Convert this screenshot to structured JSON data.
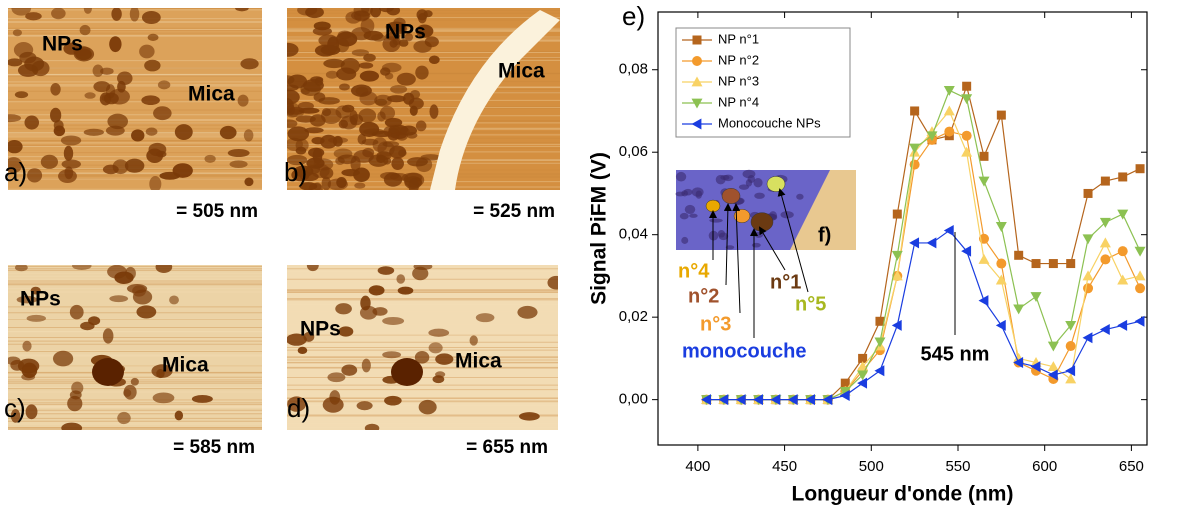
{
  "panels": [
    {
      "label": "a)",
      "caption": "= 505 nm",
      "texts": [
        "NPs",
        "Mica"
      ]
    },
    {
      "label": "b)",
      "caption": "= 525 nm",
      "texts": [
        "NPs",
        "Mica"
      ]
    },
    {
      "label": "c)",
      "caption": "= 585 nm",
      "texts": [
        "NPs",
        "Mica"
      ]
    },
    {
      "label": "d)",
      "caption": "= 655 nm",
      "texts": [
        "NPs",
        "Mica"
      ]
    }
  ],
  "chart_data": {
    "type": "line",
    "panel_label": "e)",
    "xlabel": "Longueur d'onde (nm)",
    "ylabel": "Signal PiFM (V)",
    "x": [
      405,
      415,
      425,
      435,
      445,
      455,
      465,
      475,
      485,
      495,
      505,
      515,
      525,
      535,
      545,
      555,
      565,
      575,
      585,
      595,
      605,
      615,
      625,
      635,
      645,
      655
    ],
    "series": [
      {
        "name": "NP n°1",
        "color": "#b5651d",
        "marker": "square",
        "values": [
          0,
          0,
          0,
          0,
          0,
          0,
          0,
          0,
          0.004,
          0.01,
          0.019,
          0.045,
          0.07,
          0.063,
          0.064,
          0.076,
          0.059,
          0.069,
          0.035,
          0.033,
          0.033,
          0.033,
          0.05,
          0.053,
          0.054,
          0.056
        ]
      },
      {
        "name": "NP n°2",
        "color": "#f39a2c",
        "marker": "circle",
        "values": [
          0,
          0,
          0,
          0,
          0,
          0,
          0,
          0,
          0.002,
          0.007,
          0.012,
          0.03,
          0.057,
          0.063,
          0.065,
          0.064,
          0.039,
          0.033,
          0.009,
          0.007,
          0.005,
          0.013,
          0.027,
          0.034,
          0.036,
          0.027
        ]
      },
      {
        "name": "NP n°3",
        "color": "#f8d264",
        "marker": "triangle-up",
        "values": [
          0,
          0,
          0,
          0,
          0,
          0,
          0,
          0,
          0.002,
          0.008,
          0.013,
          0.03,
          0.06,
          0.065,
          0.07,
          0.06,
          0.034,
          0.029,
          0.01,
          0.009,
          0.008,
          0.005,
          0.03,
          0.038,
          0.029,
          0.03
        ]
      },
      {
        "name": "NP n°4",
        "color": "#8cc152",
        "marker": "triangle-down",
        "values": [
          0,
          0,
          0,
          0,
          0,
          0,
          0,
          0,
          0.002,
          0.006,
          0.014,
          0.035,
          0.061,
          0.064,
          0.075,
          0.073,
          0.053,
          0.042,
          0.022,
          0.025,
          0.013,
          0.018,
          0.039,
          0.043,
          0.045,
          0.036
        ]
      },
      {
        "name": "Monocouche NPs",
        "color": "#1a3de0",
        "marker": "triangle-left",
        "values": [
          0,
          0,
          0,
          0,
          0,
          0,
          0,
          0,
          0.001,
          0.004,
          0.007,
          0.018,
          0.038,
          0.038,
          0.041,
          0.036,
          0.024,
          0.018,
          0.009,
          0.008,
          0.006,
          0.007,
          0.015,
          0.017,
          0.018,
          0.019
        ]
      }
    ],
    "xlim": [
      377,
      659
    ],
    "ylim": [
      -0.011,
      0.094
    ],
    "xticks": [
      400,
      450,
      500,
      550,
      600,
      650
    ],
    "yticks": [
      {
        "value": 0,
        "label": "0,00"
      },
      {
        "value": 0.02,
        "label": "0,02"
      },
      {
        "value": 0.04,
        "label": "0,04"
      },
      {
        "value": 0.06,
        "label": "0,06"
      },
      {
        "value": 0.08,
        "label": "0,08"
      }
    ],
    "legend": "upper left",
    "annotations": [
      {
        "text": "545 nm",
        "color": "#000000"
      },
      {
        "text": "monocouche",
        "color": "#1a3de0"
      },
      {
        "text": "n°4",
        "color": "#e8a800"
      },
      {
        "text": "n°2",
        "color": "#a0522d"
      },
      {
        "text": "n°3",
        "color": "#f39a2c"
      },
      {
        "text": "n°1",
        "color": "#6b3a12"
      },
      {
        "text": "n°5",
        "color": "#a8b820"
      },
      {
        "text": "f)",
        "color": "#000000"
      }
    ]
  }
}
